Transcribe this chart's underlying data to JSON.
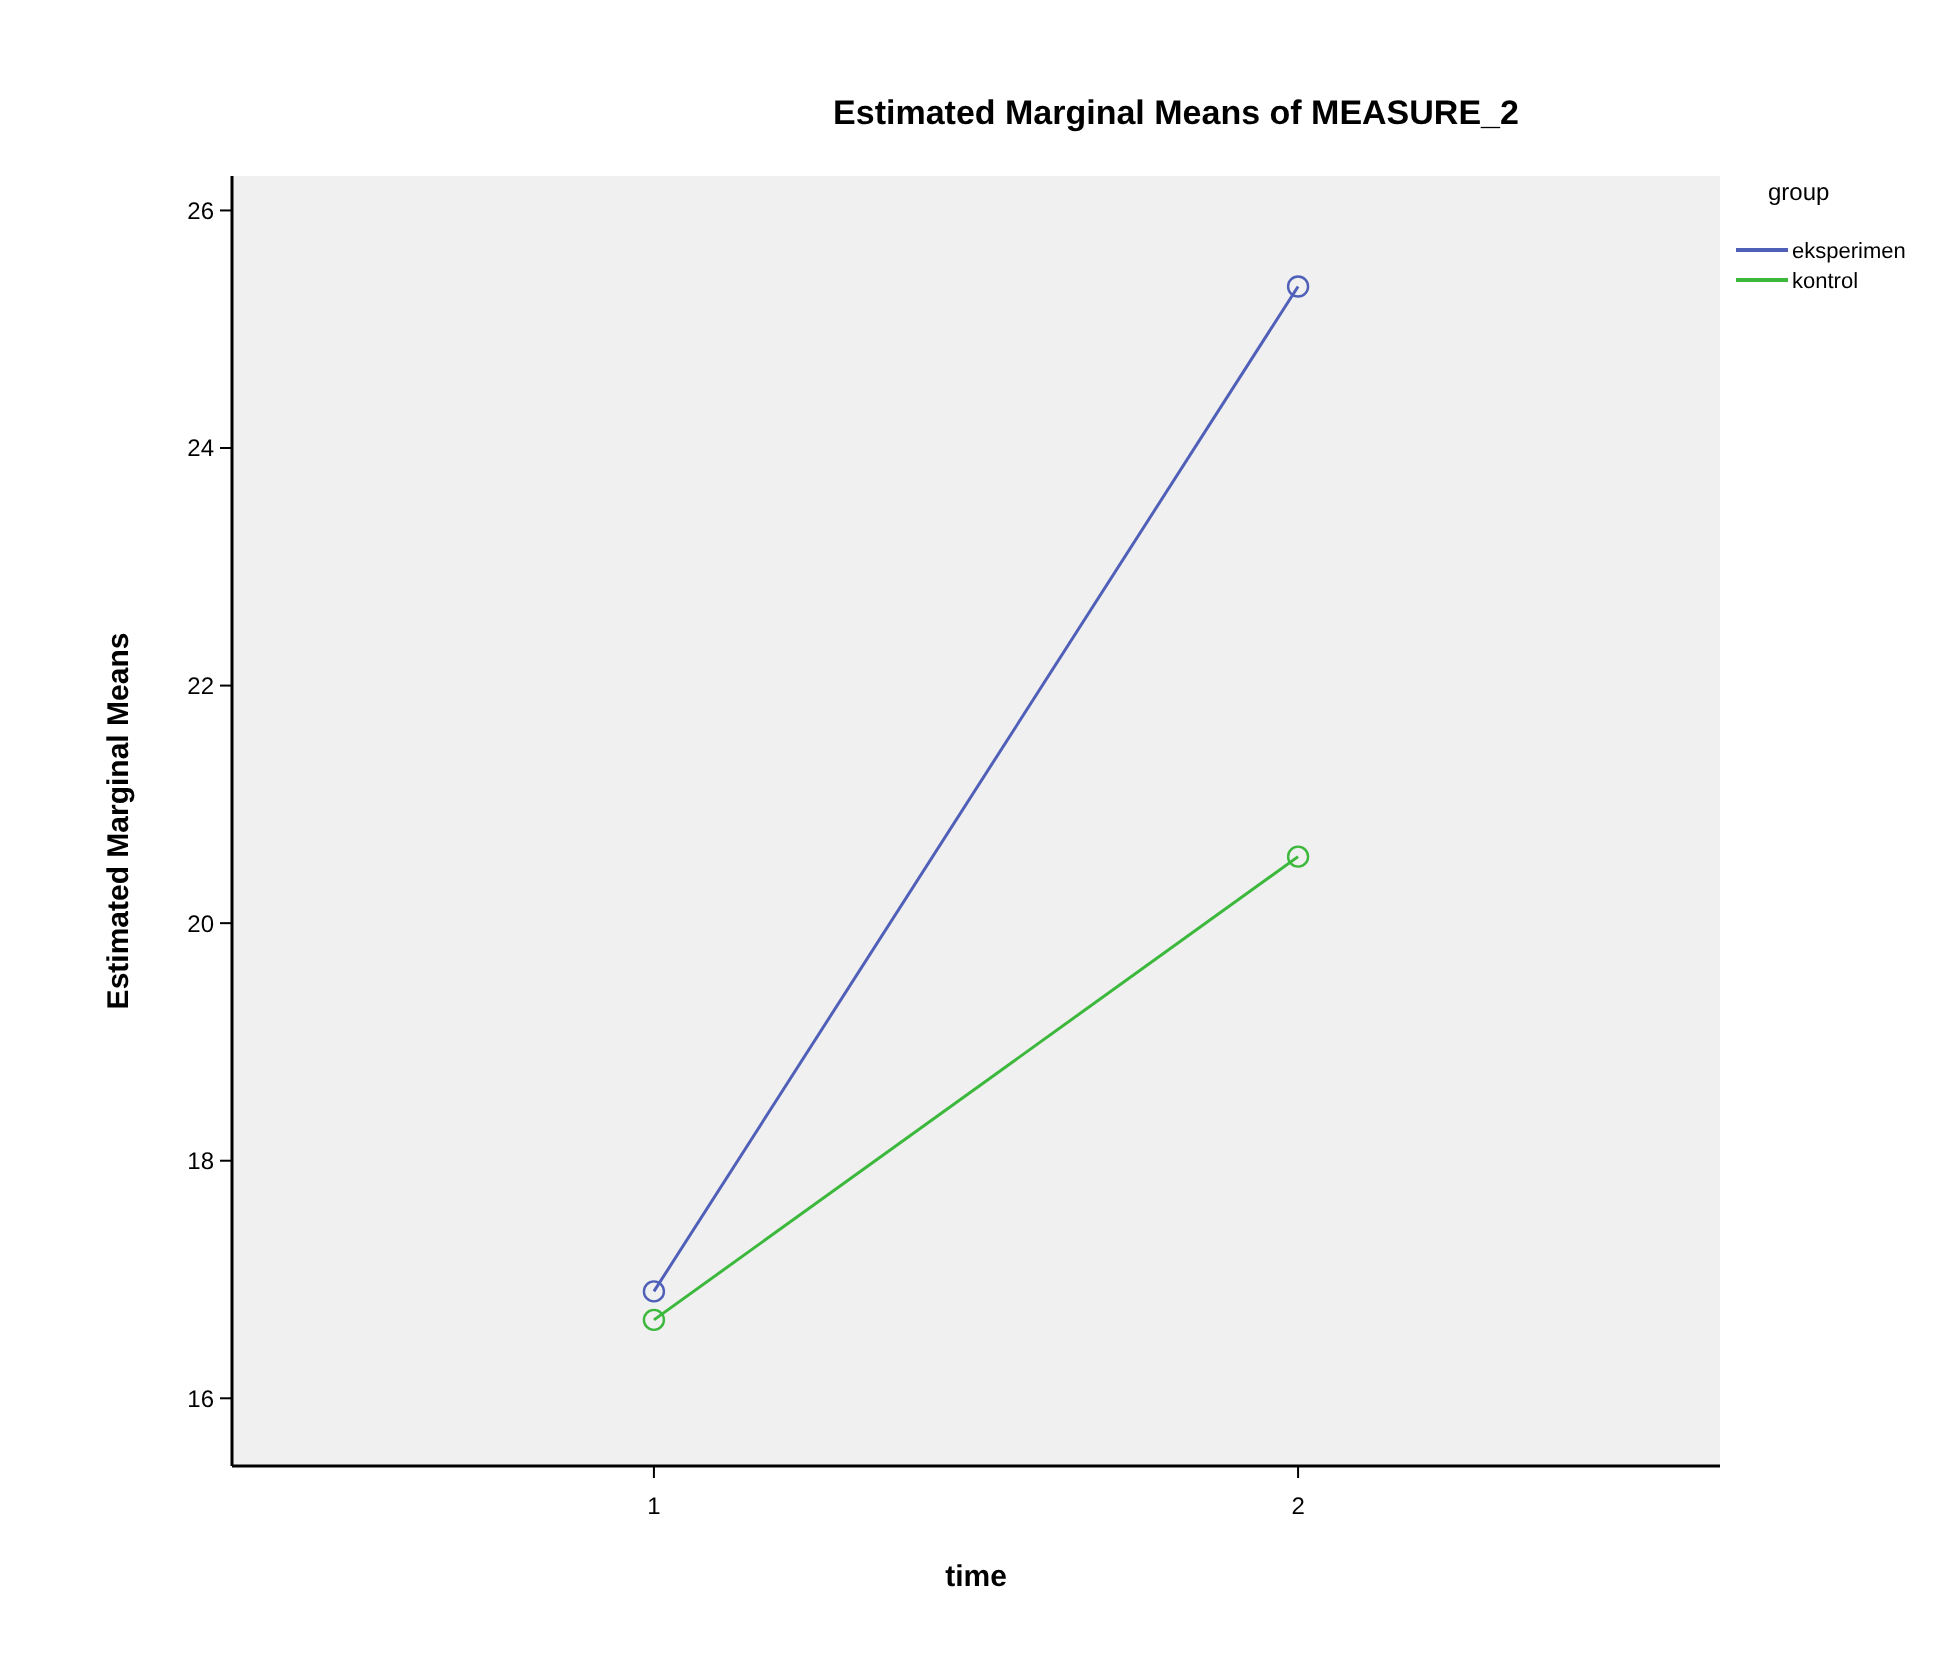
{
  "chart_data": {
    "type": "line",
    "title": "Estimated Marginal Means of MEASURE_2",
    "xlabel": "time",
    "ylabel": "Estimated Marginal Means",
    "legend_title": "group",
    "categories": [
      "1",
      "2"
    ],
    "series": [
      {
        "name": "eksperimen",
        "color": "#5060b8",
        "values": [
          16.9,
          25.36
        ]
      },
      {
        "name": "kontrol",
        "color": "#3cb83c",
        "values": [
          16.66,
          20.56
        ]
      }
    ],
    "ylim": [
      15.43,
      26.29
    ],
    "yticks": [
      16,
      18,
      20,
      22,
      24,
      26
    ],
    "grid": false,
    "legend": "top right",
    "marker": "circle",
    "line_style": "solid"
  }
}
